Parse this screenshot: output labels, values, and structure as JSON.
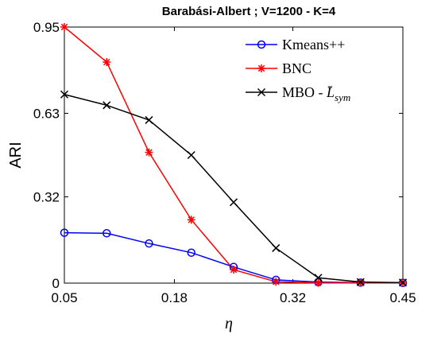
{
  "chart_data": {
    "type": "line",
    "title": "Barabási-Albert ; V=1200 - K=4",
    "xlabel": "η",
    "ylabel": "ARI",
    "xlim": [
      0.05,
      0.45
    ],
    "ylim": [
      0,
      0.95
    ],
    "xticks": [
      0.05,
      0.18,
      0.32,
      0.45
    ],
    "xtick_labels": [
      "0.05",
      "0.18",
      "0.32",
      "0.45"
    ],
    "yticks": [
      0,
      0.32,
      0.63,
      0.95
    ],
    "ytick_labels": [
      "0",
      "0.32",
      "0.63",
      "0.95"
    ],
    "grid": false,
    "legend_position": "top-right",
    "x": [
      0.05,
      0.1,
      0.15,
      0.2,
      0.25,
      0.3,
      0.35,
      0.4,
      0.45
    ],
    "series": [
      {
        "name": "Kmeans++",
        "color": "#0000ff",
        "marker": "circle",
        "values": [
          0.187,
          0.185,
          0.147,
          0.113,
          0.06,
          0.012,
          0.004,
          0.002,
          0.001
        ]
      },
      {
        "name": "BNC",
        "color": "#ff0000",
        "marker": "asterisk",
        "values": [
          0.95,
          0.82,
          0.485,
          0.235,
          0.05,
          0.005,
          0.001,
          0.001,
          0.001
        ]
      },
      {
        "name": "MBO - L̄sym",
        "legend_main": "MBO - ",
        "legend_symbol": "L̄",
        "legend_sub": "sym",
        "color": "#000000",
        "marker": "x",
        "values": [
          0.7,
          0.66,
          0.605,
          0.475,
          0.3,
          0.13,
          0.02,
          0.004,
          0.002
        ]
      }
    ]
  }
}
